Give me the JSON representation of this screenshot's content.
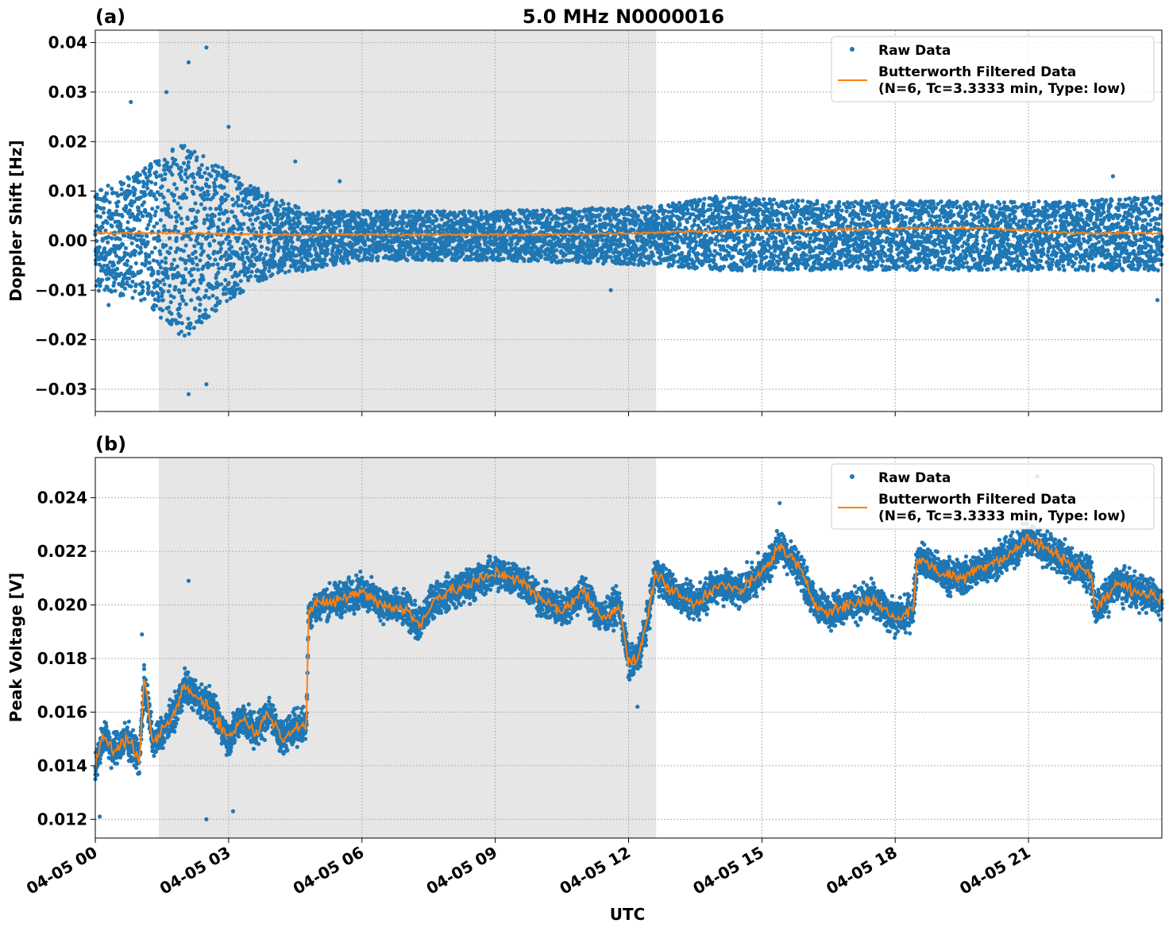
{
  "figure_title": "5.0 MHz N0000016",
  "colors": {
    "raw": "#1f77b4",
    "filtered": "#ff7f0e",
    "shade": "#e6e6e6"
  },
  "chart_data": [
    {
      "panel_label": "(a)",
      "type": "scatter",
      "ylabel": "Doppler Shift [Hz]",
      "xlabel": "",
      "ylim": [
        -0.0345,
        0.0425
      ],
      "yticks": [
        0.04,
        0.03,
        0.02,
        0.01,
        0.0,
        -0.01,
        -0.02,
        -0.03
      ],
      "ytick_labels": [
        "0.04",
        "0.03",
        "0.02",
        "0.01",
        "0.00",
        "−0.01",
        "−0.02",
        "−0.03"
      ],
      "xlim_hours": [
        0,
        24
      ],
      "shaded_interval_hours": [
        1.43,
        12.62
      ],
      "grid": true,
      "legend": {
        "position": "top-right",
        "entries": [
          "Raw Data",
          "Butterworth Filtered Data",
          "(N=6, Tc=3.3333 min, Type: low)"
        ]
      },
      "series": [
        {
          "name": "Raw Data",
          "style": "points",
          "envelope_hours": [
            0,
            1,
            2,
            3,
            4,
            4.8,
            6,
            9,
            12.6,
            14,
            16,
            18,
            20,
            22,
            24
          ],
          "envelope_low": [
            -0.01,
            -0.012,
            -0.02,
            -0.012,
            -0.007,
            -0.006,
            -0.004,
            -0.004,
            -0.005,
            -0.006,
            -0.006,
            -0.006,
            -0.006,
            -0.006,
            -0.006
          ],
          "envelope_high": [
            0.01,
            0.014,
            0.02,
            0.014,
            0.009,
            0.006,
            0.006,
            0.006,
            0.007,
            0.009,
            0.008,
            0.008,
            0.008,
            0.008,
            0.009
          ],
          "notable_points": [
            [
              0.3,
              -0.013
            ],
            [
              0.8,
              0.028
            ],
            [
              1.6,
              0.03
            ],
            [
              2.1,
              0.036
            ],
            [
              2.5,
              0.039
            ],
            [
              2.1,
              -0.031
            ],
            [
              2.5,
              -0.029
            ],
            [
              3.0,
              0.023
            ],
            [
              4.5,
              0.016
            ],
            [
              5.5,
              0.012
            ],
            [
              11.6,
              -0.01
            ],
            [
              23.9,
              -0.012
            ],
            [
              22.9,
              0.013
            ]
          ]
        },
        {
          "name": "Butterworth Filtered Data",
          "style": "line",
          "x_hours": [
            0,
            2,
            4,
            6,
            8,
            10,
            12,
            14,
            16,
            18,
            20,
            22,
            24
          ],
          "y": [
            0.0015,
            0.0015,
            0.0012,
            0.0012,
            0.0012,
            0.0012,
            0.0015,
            0.002,
            0.002,
            0.0025,
            0.0025,
            0.0015,
            0.0015
          ]
        }
      ]
    },
    {
      "panel_label": "(b)",
      "type": "scatter",
      "ylabel": "Peak Voltage [V]",
      "xlabel": "UTC",
      "ylim": [
        0.0113,
        0.0255
      ],
      "yticks": [
        0.024,
        0.022,
        0.02,
        0.018,
        0.016,
        0.014,
        0.012
      ],
      "ytick_labels": [
        "0.024",
        "0.022",
        "0.020",
        "0.018",
        "0.016",
        "0.014",
        "0.012"
      ],
      "xlim_hours": [
        0,
        24
      ],
      "xticks_hours": [
        0,
        3,
        6,
        9,
        12,
        15,
        18,
        21
      ],
      "xtick_labels": [
        "04-05 00",
        "04-05 03",
        "04-05 06",
        "04-05 09",
        "04-05 12",
        "04-05 15",
        "04-05 18",
        "04-05 21"
      ],
      "shaded_interval_hours": [
        1.43,
        12.62
      ],
      "grid": true,
      "legend": {
        "position": "top-right",
        "entries": [
          "Raw Data",
          "Butterworth Filtered Data",
          "(N=6, Tc=3.3333 min, Type: low)"
        ]
      },
      "series": [
        {
          "name": "Butterworth Filtered Data",
          "style": "line",
          "x_hours": [
            0,
            0.2,
            0.4,
            0.7,
            1.0,
            1.1,
            1.3,
            1.6,
            1.8,
            2.0,
            2.3,
            2.6,
            3.0,
            3.3,
            3.6,
            3.9,
            4.2,
            4.5,
            4.75,
            4.8,
            5.0,
            5.5,
            6.0,
            6.5,
            7.0,
            7.3,
            7.6,
            8.0,
            8.5,
            9.0,
            9.5,
            10.0,
            10.5,
            11.0,
            11.4,
            11.8,
            12.0,
            12.2,
            12.4,
            12.6,
            13.0,
            13.5,
            14.0,
            14.5,
            15.0,
            15.4,
            15.8,
            16.2,
            16.5,
            17.0,
            17.5,
            18.0,
            18.4,
            18.5,
            19.0,
            19.5,
            20.0,
            20.5,
            21.0,
            21.5,
            22.0,
            22.4,
            22.5,
            23.0,
            23.5,
            24.0
          ],
          "y": [
            0.014,
            0.0152,
            0.0145,
            0.015,
            0.0143,
            0.0172,
            0.0148,
            0.0155,
            0.016,
            0.017,
            0.0165,
            0.0162,
            0.015,
            0.0158,
            0.0152,
            0.016,
            0.015,
            0.0155,
            0.0155,
            0.0198,
            0.02,
            0.0202,
            0.0205,
            0.02,
            0.0198,
            0.0192,
            0.0202,
            0.0205,
            0.0208,
            0.0212,
            0.021,
            0.0202,
            0.0198,
            0.0205,
            0.0195,
            0.02,
            0.0178,
            0.018,
            0.0192,
            0.0212,
            0.0205,
            0.02,
            0.0208,
            0.0205,
            0.0212,
            0.0222,
            0.0215,
            0.02,
            0.0198,
            0.02,
            0.0202,
            0.0195,
            0.0198,
            0.0218,
            0.0212,
            0.021,
            0.0215,
            0.0218,
            0.0225,
            0.022,
            0.0215,
            0.0212,
            0.0198,
            0.0208,
            0.0205,
            0.0202
          ]
        },
        {
          "name": "Raw Data",
          "style": "points",
          "spread_v": 0.0009,
          "notable_points": [
            [
              1.05,
              0.0189
            ],
            [
              2.1,
              0.0209
            ],
            [
              2.5,
              0.012
            ],
            [
              3.1,
              0.0123
            ],
            [
              0.1,
              0.0121
            ],
            [
              21.2,
              0.0248
            ],
            [
              15.4,
              0.0238
            ],
            [
              12.2,
              0.0162
            ]
          ]
        }
      ]
    }
  ]
}
